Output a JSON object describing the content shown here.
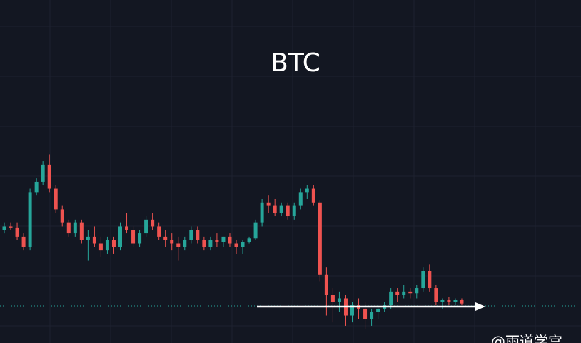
{
  "chart_data": {
    "type": "candlestick",
    "title": "BTC",
    "watermark": "@雨道学宫",
    "up_color": "#26a69a",
    "down_color": "#ef5350",
    "ylim": [
      0,
      100
    ],
    "candles": [
      [
        33,
        35,
        32,
        34
      ],
      [
        34,
        35,
        33,
        33.5
      ],
      [
        33.5,
        35,
        30,
        31
      ],
      [
        31,
        32,
        27,
        28
      ],
      [
        28,
        45,
        27,
        44
      ],
      [
        44,
        48,
        43,
        47
      ],
      [
        47,
        53,
        46,
        52
      ],
      [
        52,
        55,
        44,
        45
      ],
      [
        45,
        46,
        38,
        39
      ],
      [
        39,
        40,
        34,
        35
      ],
      [
        35,
        36,
        31,
        32
      ],
      [
        32,
        36,
        31,
        35
      ],
      [
        35,
        36,
        29,
        30
      ],
      [
        30,
        33,
        24,
        31
      ],
      [
        31,
        34,
        28,
        29
      ],
      [
        29,
        31,
        25,
        27
      ],
      [
        27,
        31,
        26,
        30
      ],
      [
        30,
        31,
        26,
        28
      ],
      [
        28,
        35,
        27,
        34
      ],
      [
        34,
        38,
        32,
        33
      ],
      [
        33,
        34,
        28,
        29
      ],
      [
        29,
        33,
        28,
        32
      ],
      [
        32,
        37,
        31,
        36
      ],
      [
        36,
        38,
        33,
        34
      ],
      [
        34,
        35,
        30,
        31
      ],
      [
        31,
        33,
        28,
        30
      ],
      [
        30,
        32,
        27,
        29
      ],
      [
        29,
        31,
        24,
        28
      ],
      [
        28,
        31,
        27,
        30
      ],
      [
        30,
        34,
        29,
        33
      ],
      [
        33,
        34,
        29,
        30
      ],
      [
        30,
        31,
        27,
        28
      ],
      [
        28,
        31,
        27,
        30
      ],
      [
        30,
        32,
        28,
        29.5
      ],
      [
        29.5,
        31,
        28,
        31
      ],
      [
        31,
        32,
        28,
        29
      ],
      [
        29,
        30,
        26,
        28
      ],
      [
        28,
        30,
        26,
        29.5
      ],
      [
        29.5,
        31,
        29,
        30.5
      ],
      [
        30.5,
        36,
        30,
        35
      ],
      [
        35,
        42,
        34,
        41
      ],
      [
        41,
        43,
        38,
        40
      ],
      [
        40,
        42,
        37,
        38
      ],
      [
        38,
        41,
        37,
        40
      ],
      [
        40,
        41,
        36,
        37
      ],
      [
        37,
        41,
        36,
        40
      ],
      [
        40,
        45,
        39,
        44
      ],
      [
        44,
        46,
        42,
        45
      ],
      [
        45,
        46,
        40,
        41
      ],
      [
        41,
        41.5,
        18,
        20
      ],
      [
        20,
        22,
        8,
        14
      ],
      [
        14,
        16,
        6,
        12
      ],
      [
        12,
        15,
        9,
        13
      ],
      [
        13,
        14,
        5,
        8
      ],
      [
        8,
        12,
        6,
        11
      ],
      [
        11,
        13,
        7,
        10
      ],
      [
        10,
        12,
        4,
        7
      ],
      [
        7,
        10,
        5,
        9
      ],
      [
        9,
        11,
        7,
        10
      ],
      [
        10,
        12,
        9,
        11
      ],
      [
        11,
        16,
        10,
        15
      ],
      [
        15,
        16,
        12,
        14
      ],
      [
        14,
        17,
        13,
        15
      ],
      [
        15,
        16,
        13,
        14.5
      ],
      [
        14.5,
        17,
        13,
        16
      ],
      [
        16,
        22,
        15,
        21
      ],
      [
        21,
        23,
        15,
        16
      ],
      [
        16,
        17,
        11,
        12
      ],
      [
        12,
        13,
        10,
        12.5
      ],
      [
        12.5,
        13.5,
        11,
        12
      ],
      [
        12,
        13,
        11,
        12.5
      ],
      [
        12.5,
        13,
        11,
        11.5
      ]
    ]
  }
}
